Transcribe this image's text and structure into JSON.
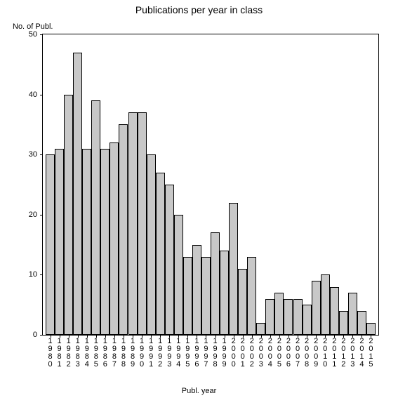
{
  "chart": {
    "type": "bar",
    "title": "Publications per year in class",
    "title_fontsize": 14,
    "ylabel": "No. of Publ.",
    "xlabel": "Publ. year",
    "label_fontsize": 11,
    "background_color": "#ffffff",
    "plot_border_color": "#000000",
    "bar_fill_color": "#c8c8c8",
    "bar_border_color": "#000000",
    "text_color": "#000000",
    "bar_width": 1.0,
    "ylim": [
      0,
      50
    ],
    "ytick_step": 10,
    "yticks": [
      0,
      10,
      20,
      30,
      40,
      50
    ],
    "categories": [
      "1980",
      "1981",
      "1982",
      "1983",
      "1984",
      "1985",
      "1986",
      "1987",
      "1988",
      "1989",
      "1990",
      "1991",
      "1992",
      "1993",
      "1994",
      "1995",
      "1996",
      "1997",
      "1998",
      "1999",
      "2000",
      "2001",
      "2002",
      "2003",
      "2004",
      "2005",
      "2006",
      "2007",
      "2008",
      "2009",
      "2010",
      "2011",
      "2012",
      "2013",
      "2014",
      "2015"
    ],
    "values": [
      30,
      31,
      40,
      47,
      31,
      39,
      31,
      32,
      35,
      37,
      37,
      30,
      27,
      25,
      20,
      13,
      15,
      13,
      17,
      14,
      22,
      11,
      13,
      2,
      6,
      7,
      6,
      6,
      5,
      9,
      10,
      8,
      4,
      7,
      4,
      2
    ]
  }
}
